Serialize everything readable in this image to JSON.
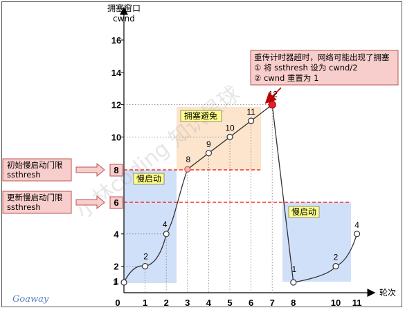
{
  "axes": {
    "y_title_line1": "拥塞窗口",
    "y_title_line2": "cwnd",
    "x_title": "轮次",
    "y_ticks": [
      "2",
      "4",
      "6",
      "8",
      "10",
      "12",
      "14",
      "16"
    ],
    "x_ticks": [
      "0",
      "1",
      "2",
      "3",
      "4",
      "5",
      "6",
      "7",
      "8",
      "10",
      "11"
    ],
    "y_origin_label": "1"
  },
  "phases": {
    "slow_start_1": "慢启动",
    "congestion_avoidance": "拥塞避免",
    "slow_start_2": "慢启动"
  },
  "thresholds": {
    "initial_label_line1": "初始慢启动门限",
    "initial_label_line2": "ssthresh",
    "initial_value": "8",
    "updated_label_line1": "更新慢启动门限",
    "updated_label_line2": "ssthresh",
    "updated_value": "6"
  },
  "timeout_note": {
    "line1": "重传计时器超时，网络可能出现了拥塞",
    "line2": "① 将 ssthresh 设为 cwnd/2",
    "line3": "② cwnd 重置为 1"
  },
  "watermark": "小林coding  知识星球",
  "signature": "Goaway",
  "colors": {
    "slow_start_fill": "#c9daf8",
    "avoidance_fill": "#fce1c8",
    "threshold_line": "#ff0000",
    "timeout_point": "#e0202a",
    "label_box_fill": "#f8cecc",
    "label_box_border": "#b85450",
    "phase_label_fill": "#ffff88"
  },
  "chart_data": {
    "type": "line",
    "xlabel": "轮次",
    "ylabel": "拥塞窗口 cwnd",
    "ylim": [
      0,
      17
    ],
    "grid": false,
    "series": [
      {
        "points": [
          {
            "x": 0,
            "y": 1,
            "label": "1"
          },
          {
            "x": 1,
            "y": 2,
            "label": "2"
          },
          {
            "x": 2,
            "y": 4,
            "label": "4"
          },
          {
            "x": 3,
            "y": 8,
            "label": "8"
          },
          {
            "x": 4,
            "y": 9,
            "label": "9"
          },
          {
            "x": 5,
            "y": 10,
            "label": "10"
          },
          {
            "x": 6,
            "y": 11,
            "label": "11"
          },
          {
            "x": 7,
            "y": 12,
            "label": "12"
          },
          {
            "x": 8,
            "y": 1,
            "label": "1"
          },
          {
            "x": 10,
            "y": 2,
            "label": "2"
          },
          {
            "x": 11,
            "y": 4,
            "label": "4"
          }
        ]
      }
    ],
    "initial_ssthresh": 8,
    "updated_ssthresh": 6,
    "timeout_round": 7
  }
}
